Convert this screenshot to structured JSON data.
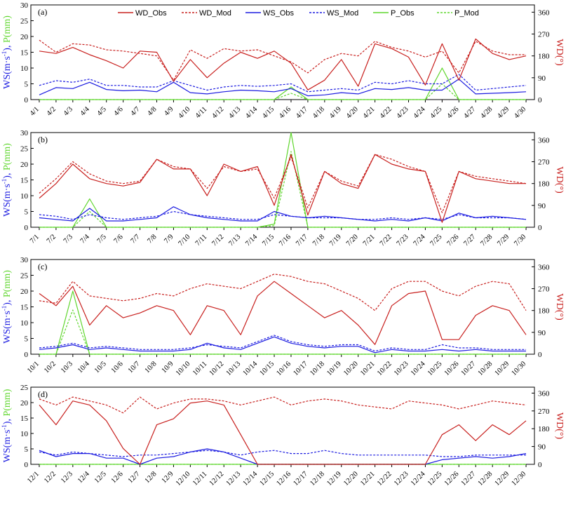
{
  "colors": {
    "wd": "#c8201e",
    "ws": "#1c1ce0",
    "p": "#5fd62d",
    "frame": "#000000"
  },
  "legend": [
    {
      "key": "WD_Obs",
      "label": "WD_Obs",
      "color": "#c8201e",
      "dash": "solid"
    },
    {
      "key": "WD_Mod",
      "label": "WD_Mod",
      "color": "#c8201e",
      "dash": "dashed"
    },
    {
      "key": "WS_Obs",
      "label": "WS_Obs",
      "color": "#1c1ce0",
      "dash": "solid"
    },
    {
      "key": "WS_Mod",
      "label": "WS_Mod",
      "color": "#1c1ce0",
      "dash": "dashed"
    },
    {
      "key": "P_Obs",
      "label": "P_Obs",
      "color": "#5fd62d",
      "dash": "solid"
    },
    {
      "key": "P_Mod",
      "label": "P_Mod",
      "color": "#5fd62d",
      "dash": "dashed"
    }
  ],
  "left_axis_title": {
    "ws_part": "WS(m·s",
    "exp": "-1",
    "ws_close": "),",
    "p_part": "P(mm)"
  },
  "right_axis_title": "WD(°)",
  "chart_data": [
    {
      "panel": "(a)",
      "type": "line",
      "x_labels": [
        "4/1",
        "4/2",
        "4/3",
        "4/4",
        "4/5",
        "4/6",
        "4/7",
        "4/8",
        "4/9",
        "4/10",
        "4/11",
        "4/12",
        "4/13",
        "4/14",
        "4/15",
        "4/16",
        "4/17",
        "4/18",
        "4/19",
        "4/20",
        "4/21",
        "4/22",
        "4/23",
        "4/24",
        "4/25",
        "4/26",
        "4/27",
        "4/28",
        "4/29",
        "4/30"
      ],
      "ylim_left": [
        0,
        30
      ],
      "yticks_left": [
        0,
        5,
        10,
        15,
        20,
        25,
        30
      ],
      "ylim_right": [
        0,
        390
      ],
      "yticks_right": [
        0,
        90,
        180,
        270,
        360
      ],
      "series": {
        "WD_Obs": [
          200,
          190,
          215,
          185,
          160,
          130,
          200,
          195,
          75,
          165,
          90,
          150,
          195,
          170,
          200,
          150,
          40,
          80,
          165,
          55,
          230,
          210,
          175,
          60,
          230,
          80,
          250,
          190,
          165,
          180
        ],
        "WD_Mod": [
          245,
          195,
          230,
          225,
          205,
          200,
          190,
          180,
          80,
          205,
          170,
          210,
          200,
          205,
          180,
          155,
          110,
          165,
          190,
          180,
          240,
          215,
          200,
          175,
          200,
          110,
          240,
          200,
          185,
          185
        ],
        "WS_Obs": [
          1.5,
          3.8,
          3.5,
          5.5,
          3.2,
          2.8,
          3.0,
          2.5,
          5.5,
          2.2,
          1.8,
          2.5,
          3.0,
          2.8,
          2.5,
          3.5,
          1.2,
          1.5,
          2.2,
          1.8,
          3.5,
          3.2,
          3.8,
          3.0,
          3.0,
          6.5,
          1.8,
          2.0,
          2.2,
          2.5
        ],
        "WS_Mod": [
          4.5,
          6.0,
          5.5,
          6.5,
          4.5,
          4.5,
          4.0,
          4.0,
          6.0,
          4.5,
          3.0,
          4.0,
          4.5,
          4.2,
          4.5,
          5.0,
          2.5,
          3.0,
          3.5,
          3.0,
          5.5,
          5.0,
          6.0,
          5.0,
          5.0,
          8.0,
          3.0,
          3.5,
          4.0,
          4.5
        ],
        "P_Obs": [
          0,
          0,
          0,
          0,
          0,
          0,
          0,
          0,
          0,
          0,
          0,
          0,
          0,
          0,
          0,
          4,
          0,
          0,
          0,
          0,
          0,
          0,
          0,
          0,
          10,
          0,
          0,
          0,
          0,
          0
        ],
        "P_Mod": [
          0,
          0,
          0,
          0,
          0,
          0,
          0,
          0,
          0,
          0,
          0,
          0,
          0,
          0,
          0,
          2,
          0,
          0,
          0,
          0,
          0,
          0,
          0,
          0,
          5,
          0,
          0,
          0,
          0,
          0
        ]
      }
    },
    {
      "panel": "(b)",
      "type": "line",
      "x_labels": [
        "7/1",
        "7/2",
        "7/3",
        "7/4",
        "7/5",
        "7/6",
        "7/7",
        "7/8",
        "7/9",
        "7/10",
        "7/11",
        "7/12",
        "7/13",
        "7/14",
        "7/15",
        "7/16",
        "7/17",
        "7/18",
        "7/19",
        "7/20",
        "7/21",
        "7/22",
        "7/23",
        "7/24",
        "7/25",
        "7/26",
        "7/27",
        "7/28",
        "7/29",
        "7/30"
      ],
      "ylim_left": [
        0,
        30
      ],
      "yticks_left": [
        0,
        5,
        10,
        15,
        20,
        25,
        30
      ],
      "ylim_right": [
        0,
        390
      ],
      "yticks_right": [
        0,
        90,
        180,
        270,
        360
      ],
      "series": {
        "WD_Obs": [
          120,
          180,
          260,
          200,
          180,
          170,
          185,
          280,
          240,
          240,
          130,
          260,
          230,
          250,
          90,
          300,
          50,
          230,
          180,
          160,
          300,
          260,
          240,
          230,
          20,
          230,
          200,
          190,
          180,
          180
        ],
        "WD_Mod": [
          140,
          200,
          270,
          220,
          190,
          180,
          190,
          280,
          250,
          240,
          160,
          250,
          230,
          240,
          120,
          290,
          80,
          230,
          190,
          170,
          300,
          280,
          250,
          230,
          60,
          230,
          210,
          200,
          190,
          180
        ],
        "WS_Obs": [
          3.0,
          2.5,
          2.0,
          6.0,
          2.0,
          2.0,
          2.5,
          3.0,
          6.5,
          4.0,
          3.0,
          2.5,
          2.0,
          2.0,
          5.0,
          3.5,
          3.0,
          3.5,
          3.0,
          2.5,
          2.0,
          2.5,
          2.0,
          3.0,
          2.0,
          4.5,
          3.0,
          3.5,
          3.0,
          2.5
        ],
        "WS_Mod": [
          4.0,
          3.5,
          2.5,
          4.0,
          3.0,
          2.5,
          3.0,
          3.5,
          5.0,
          4.0,
          3.5,
          3.0,
          2.5,
          2.5,
          4.0,
          3.5,
          3.0,
          3.0,
          3.0,
          2.5,
          2.5,
          3.0,
          2.5,
          3.0,
          2.5,
          4.0,
          3.0,
          3.0,
          3.0,
          2.5
        ],
        "P_Obs": [
          0,
          0,
          0,
          9,
          0,
          0,
          0,
          0,
          0,
          0,
          0,
          0,
          0,
          0,
          1,
          30,
          0,
          0,
          0,
          0,
          0,
          0,
          0,
          0,
          0,
          0,
          0,
          0,
          0,
          0
        ],
        "P_Mod": [
          0,
          0,
          0,
          5,
          0,
          0,
          0,
          0,
          0,
          0,
          0,
          0,
          0,
          0,
          0.5,
          24,
          0,
          0,
          0,
          0,
          0,
          0,
          0,
          0,
          0,
          0,
          0,
          0,
          0,
          0
        ]
      }
    },
    {
      "panel": "(c)",
      "type": "line",
      "x_labels": [
        "10/1",
        "10/2",
        "10/3",
        "10/4",
        "10/5",
        "10/6",
        "10/7",
        "10/8",
        "10/9",
        "10/10",
        "10/11",
        "10/12",
        "10/13",
        "10/14",
        "10/15",
        "10/16",
        "10/17",
        "10/18",
        "10/19",
        "10/20",
        "10/21",
        "10/22",
        "10/23",
        "10/24",
        "10/25",
        "10/26",
        "10/27",
        "10/28",
        "10/29",
        "10/30"
      ],
      "ylim_left": [
        0,
        30
      ],
      "yticks_left": [
        0,
        5,
        10,
        15,
        20,
        25,
        30
      ],
      "ylim_right": [
        0,
        390
      ],
      "yticks_right": [
        0,
        90,
        180,
        270,
        360
      ],
      "series": {
        "WD_Obs": [
          250,
          200,
          280,
          120,
          200,
          150,
          170,
          200,
          180,
          80,
          200,
          180,
          80,
          240,
          300,
          250,
          200,
          150,
          180,
          120,
          40,
          200,
          250,
          260,
          60,
          60,
          160,
          200,
          180,
          80
        ],
        "WD_Mod": [
          220,
          210,
          300,
          240,
          230,
          220,
          230,
          250,
          240,
          270,
          290,
          280,
          270,
          300,
          330,
          320,
          300,
          290,
          260,
          230,
          180,
          270,
          300,
          300,
          260,
          240,
          280,
          300,
          290,
          180
        ],
        "WS_Obs": [
          1.5,
          2.0,
          3.0,
          1.5,
          2.0,
          1.5,
          1.0,
          1.0,
          1.0,
          1.5,
          3.5,
          2.0,
          1.5,
          3.5,
          5.5,
          3.5,
          2.5,
          2.0,
          2.5,
          2.5,
          0.5,
          1.5,
          1.0,
          1.0,
          1.5,
          1.0,
          1.5,
          1.0,
          1.0,
          1.0
        ],
        "WS_Mod": [
          2.0,
          2.5,
          3.5,
          2.0,
          2.5,
          2.0,
          1.5,
          1.5,
          1.5,
          2.0,
          3.0,
          2.5,
          2.0,
          4.0,
          6.0,
          4.0,
          3.0,
          2.5,
          3.0,
          3.0,
          1.0,
          2.0,
          1.5,
          1.5,
          3.0,
          2.0,
          2.0,
          1.5,
          1.5,
          1.5
        ],
        "P_Obs": [
          0,
          0,
          20,
          0,
          0,
          0,
          0,
          0,
          0,
          0,
          0,
          0,
          0,
          0,
          0,
          0,
          0,
          0,
          0,
          0,
          0,
          0,
          0,
          0,
          0,
          0,
          0,
          0,
          0,
          0
        ],
        "P_Mod": [
          0,
          0,
          14,
          0,
          0,
          0,
          0,
          0,
          0,
          0,
          0,
          0,
          0,
          0,
          0,
          0,
          0,
          0,
          0,
          0,
          0,
          0,
          0,
          0,
          0,
          0,
          0,
          0,
          0,
          0
        ]
      }
    },
    {
      "panel": "(d)",
      "type": "line",
      "x_labels": [
        "12/1",
        "12/2",
        "12/3",
        "12/4",
        "12/5",
        "12/6",
        "12/7",
        "12/8",
        "12/9",
        "12/10",
        "12/11",
        "12/12",
        "12/13",
        "12/14",
        "12/15",
        "12/16",
        "12/17",
        "12/18",
        "12/19",
        "12/20",
        "12/21",
        "12/22",
        "12/23",
        "12/24",
        "12/25",
        "12/26",
        "12/27",
        "12/28",
        "12/29",
        "12/30"
      ],
      "ylim_left": [
        0,
        25
      ],
      "yticks_left": [
        0,
        5,
        10,
        15,
        20,
        25
      ],
      "ylim_right": [
        0,
        390
      ],
      "yticks_right": [
        0,
        90,
        180,
        270,
        360
      ],
      "series": {
        "WD_Obs": [
          300,
          200,
          320,
          300,
          220,
          80,
          0,
          200,
          230,
          310,
          320,
          300,
          150,
          0,
          0,
          0,
          0,
          0,
          0,
          0,
          0,
          0,
          0,
          0,
          150,
          200,
          120,
          200,
          150,
          220
        ],
        "WD_Mod": [
          330,
          300,
          340,
          320,
          300,
          260,
          340,
          280,
          310,
          330,
          330,
          320,
          300,
          320,
          340,
          300,
          320,
          330,
          320,
          300,
          290,
          280,
          320,
          310,
          300,
          280,
          300,
          320,
          310,
          300
        ],
        "WS_Obs": [
          4.5,
          2.5,
          3.5,
          3.5,
          2.0,
          2.0,
          0,
          2.0,
          2.5,
          4.0,
          5.0,
          4.0,
          2.0,
          0,
          0,
          0,
          0,
          0,
          0,
          0,
          0,
          0,
          0,
          0,
          1.5,
          2.0,
          2.5,
          2.0,
          2.5,
          3.5
        ],
        "WS_Mod": [
          4.0,
          3.0,
          4.0,
          3.5,
          3.0,
          2.5,
          3.0,
          3.0,
          3.5,
          4.0,
          4.5,
          4.0,
          3.0,
          4.0,
          4.5,
          3.5,
          3.5,
          4.5,
          3.5,
          3.0,
          3.0,
          3.0,
          3.0,
          3.0,
          2.5,
          2.5,
          3.0,
          3.0,
          3.0,
          3.0
        ],
        "P_Obs": [
          0,
          0,
          0,
          0,
          0,
          0,
          0,
          0,
          0,
          0,
          0,
          0,
          0,
          0,
          0,
          0,
          0,
          0,
          0,
          0,
          0,
          0,
          0,
          0,
          0,
          0,
          0,
          0,
          0,
          0
        ],
        "P_Mod": [
          0,
          0,
          0,
          0,
          0,
          0,
          0,
          0,
          0,
          0,
          0,
          0,
          0,
          0,
          0,
          0,
          0,
          0,
          0,
          0,
          0,
          0,
          0,
          0,
          0,
          0,
          0,
          0,
          0,
          0
        ]
      }
    }
  ]
}
